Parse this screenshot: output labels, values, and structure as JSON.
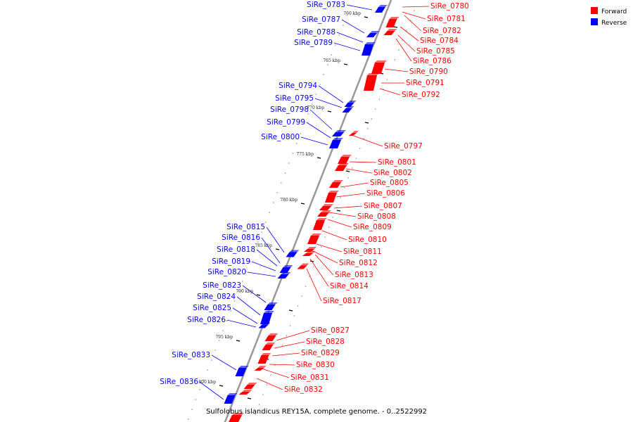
{
  "colors": {
    "forward": "#ff0000",
    "reverse": "#0000ff",
    "axis": "#999999",
    "tick": "#000000"
  },
  "legend": {
    "forward_label": "Forward",
    "reverse_label": "Reverse"
  },
  "caption": "Sulfolobus islandicus REY15A, complete genome. - 0..2522992",
  "axis_ticks": [
    "760 kbp",
    "765 kbp",
    "770 kbp",
    "775 kbp",
    "780 kbp",
    "785 kbp",
    "790 kbp",
    "795 kbp",
    "800 kbp"
  ],
  "genes_reverse": [
    "SiRe_0783",
    "SiRe_0787",
    "SiRe_0788",
    "SiRe_0789",
    "SiRe_0794",
    "SiRe_0795",
    "SiRe_0798",
    "SiRe_0799",
    "SiRe_0800",
    "SiRe_0815",
    "SiRe_0816",
    "SiRe_0818",
    "SiRe_0819",
    "SiRe_0820",
    "SiRe_0823",
    "SiRe_0824",
    "SiRe_0825",
    "SiRe_0826",
    "SiRe_0833",
    "SiRe_0836"
  ],
  "genes_forward": [
    "SiRe_0780",
    "SiRe_0781",
    "SiRe_0782",
    "SiRe_0784",
    "SiRe_0785",
    "SiRe_0786",
    "SiRe_0790",
    "SiRe_0791",
    "SiRe_0792",
    "SiRe_0797",
    "SiRe_0801",
    "SiRe_0802",
    "SiRe_0805",
    "SiRe_0806",
    "SiRe_0807",
    "SiRe_0808",
    "SiRe_0809",
    "SiRe_0810",
    "SiRe_0811",
    "SiRe_0812",
    "SiRe_0813",
    "SiRe_0814",
    "SiRe_0817",
    "SiRe_0827",
    "SiRe_0828",
    "SiRe_0829",
    "SiRe_0830",
    "SiRe_0831",
    "SiRe_0832"
  ]
}
